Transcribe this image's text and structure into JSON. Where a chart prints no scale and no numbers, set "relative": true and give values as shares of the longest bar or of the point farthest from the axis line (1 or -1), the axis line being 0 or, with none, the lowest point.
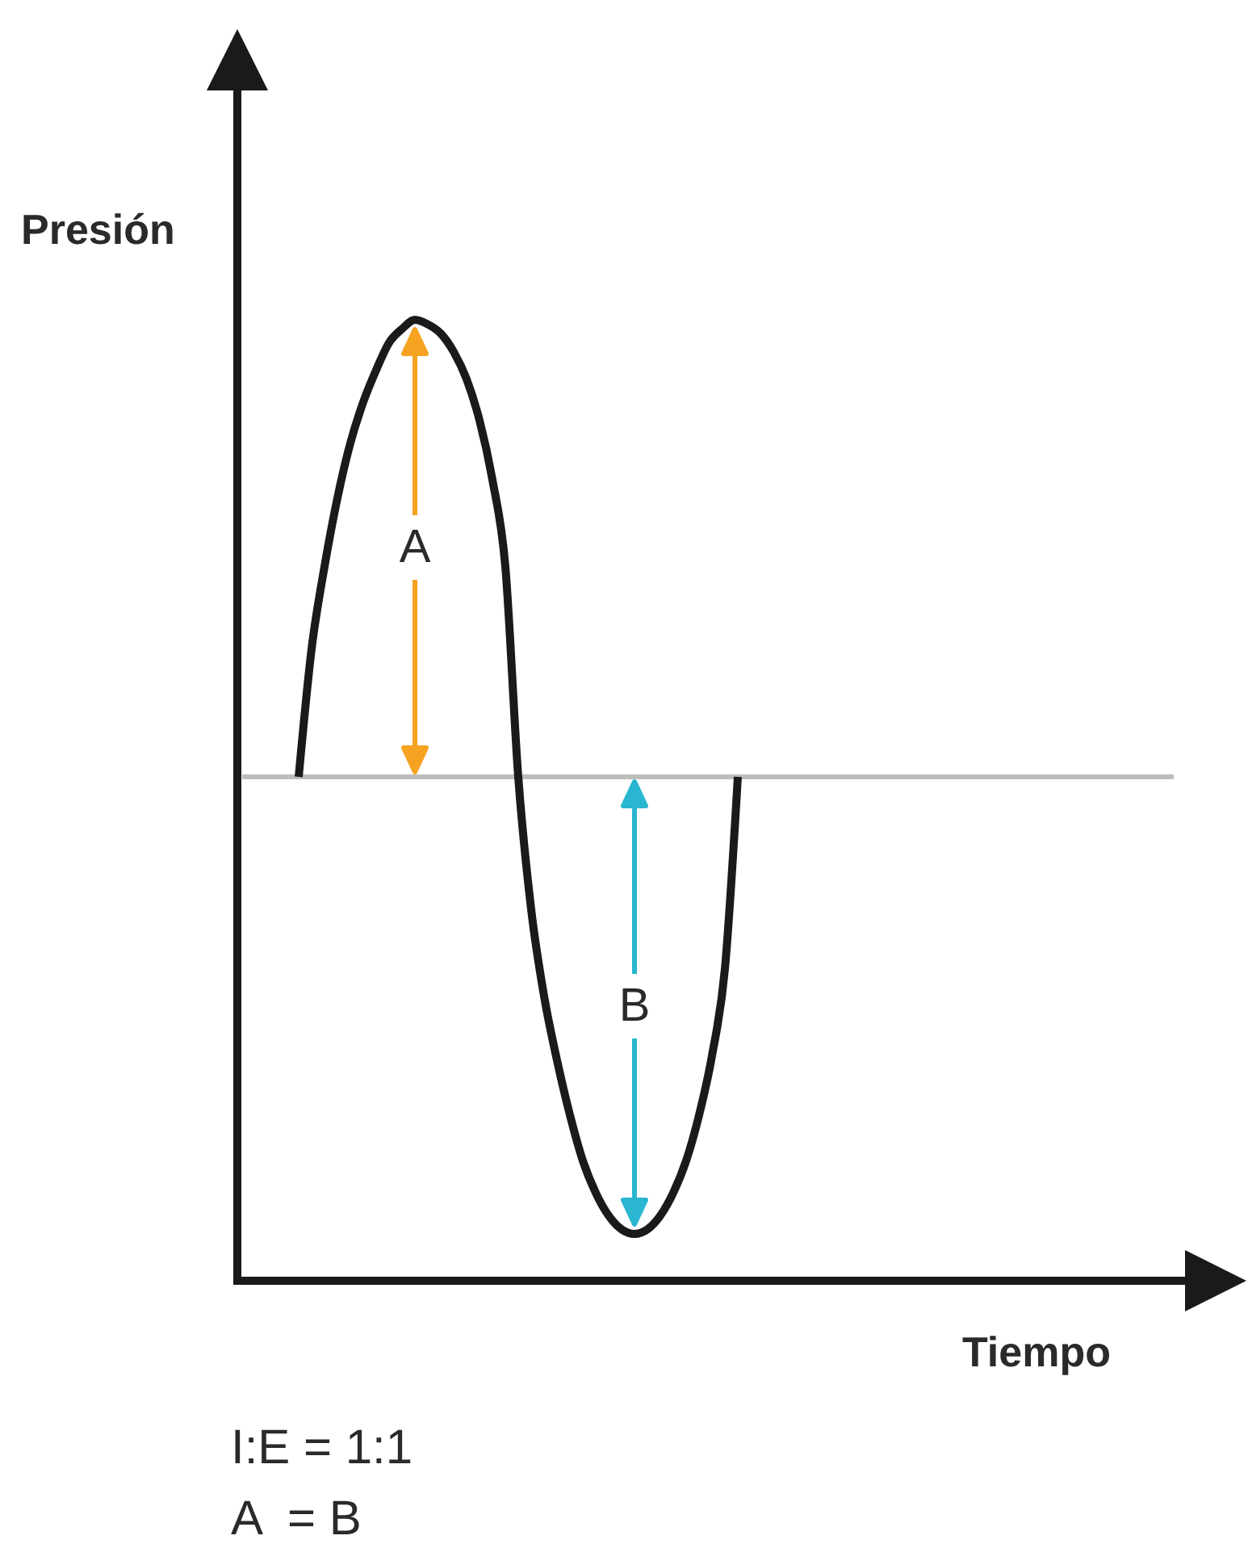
{
  "chart_data": {
    "type": "line",
    "relative": true,
    "xlabel": "Tiempo",
    "ylabel": "Presión",
    "categories": [
      null,
      null,
      null,
      null,
      null,
      null,
      null,
      null,
      null,
      null,
      null,
      null,
      null,
      null,
      null,
      null,
      null,
      null,
      null,
      null,
      null,
      null,
      null,
      null,
      null,
      null,
      null,
      null,
      null,
      null,
      null,
      null,
      null,
      null,
      null,
      null,
      null,
      null,
      null,
      null,
      null,
      null,
      null,
      null,
      null,
      null,
      null,
      null,
      null,
      null,
      null,
      null,
      null,
      null,
      null,
      null,
      null,
      null,
      null,
      null,
      null,
      null,
      null,
      null,
      null,
      null,
      null,
      null,
      null,
      null,
      null,
      null
    ],
    "series": [
      {
        "color": "#1a1a1a",
        "values": [
          null,
          null,
          null,
          null,
          0,
          0.28,
          0.46,
          0.61,
          0.73,
          0.82,
          0.89,
          0.95,
          0.98,
          1,
          0.99,
          0.97,
          0.93,
          0.87,
          0.78,
          0.65,
          0.46,
          0,
          -0.29,
          -0.48,
          -0.62,
          -0.74,
          -0.84,
          -0.91,
          -0.96,
          -0.99,
          -1,
          -0.99,
          -0.96,
          -0.91,
          -0.84,
          -0.74,
          -0.61,
          -0.42,
          0,
          null,
          null,
          null,
          null,
          null,
          null,
          null,
          null,
          null,
          null,
          null,
          null,
          null,
          null,
          null,
          null,
          null,
          null,
          null,
          null,
          null,
          null,
          null,
          null,
          null,
          null,
          null,
          null,
          null,
          null,
          null,
          null,
          null
        ]
      }
    ],
    "ref_lines": [
      {
        "axis": "y",
        "value": 0,
        "color": "#bdbdbd"
      }
    ],
    "annotations": [
      "A",
      "B",
      "I:E = 1:1",
      "A  = B"
    ]
  }
}
